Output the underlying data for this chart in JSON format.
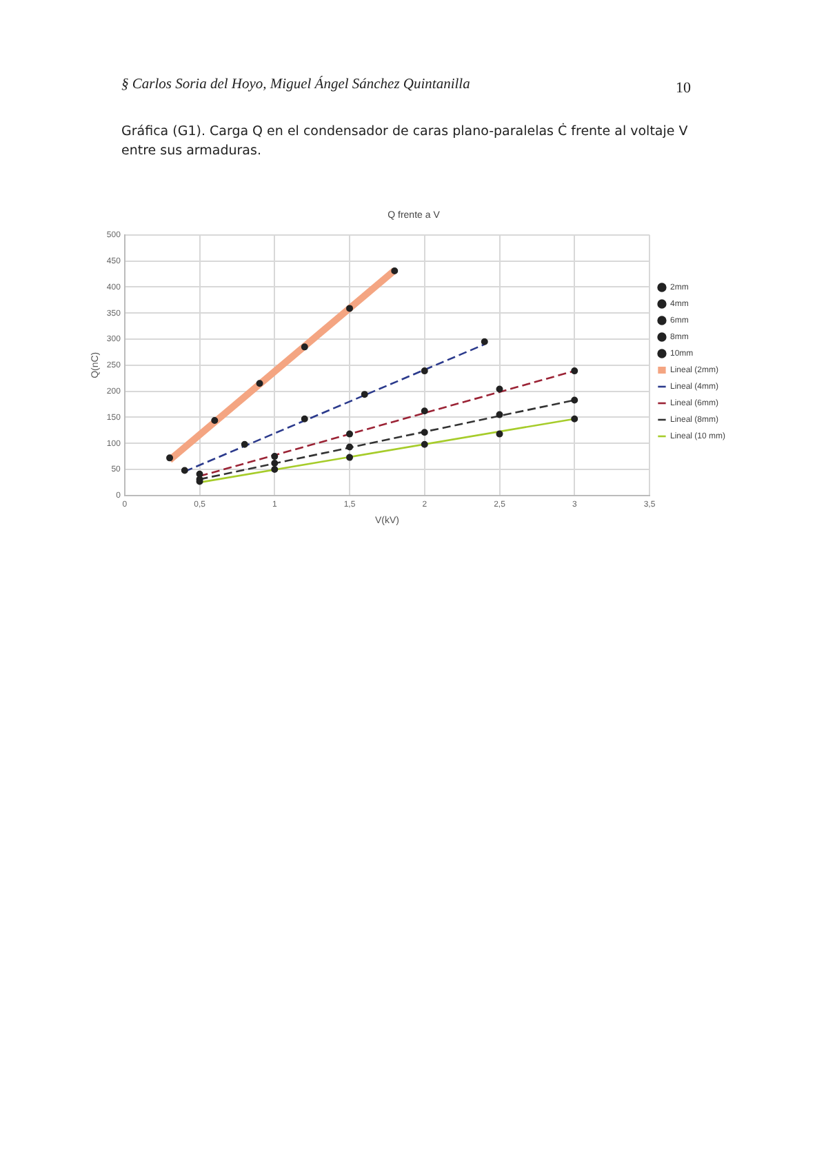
{
  "chart_data": {
    "type": "scatter",
    "title": "Q frente a V",
    "xlabel": "V(kV)",
    "ylabel": "Q(nC)",
    "annotations": [
      "§ Carlos Soria del Hoyo, Miguel Ángel Sánchez Quintanilla",
      "10",
      "Gráfica (G1). Carga Q en el condensador de caras plano-paralelas Ċ frente al voltaje V entre sus armaduras."
    ],
    "xlim": [
      0,
      3.5
    ],
    "xticks": [
      0,
      {
        "value": 0.5,
        "label": "0,5"
      },
      1,
      {
        "value": 1.5,
        "label": "1,5"
      },
      2,
      {
        "value": 2.5,
        "label": "2,5"
      },
      3,
      {
        "value": 3.5,
        "label": "3,5"
      }
    ],
    "ylim": [
      0,
      500
    ],
    "yticks": [
      0,
      50,
      100,
      150,
      200,
      250,
      300,
      350,
      400,
      450,
      500
    ],
    "grid": true,
    "legend": "right",
    "marker": "circle",
    "series": [
      {
        "name": "2mm",
        "color": "#222222",
        "x": [
          0.3,
          0.6,
          0.9,
          1.2,
          1.5,
          1.8
        ],
        "values": [
          72,
          144,
          215,
          285,
          359,
          431
        ]
      },
      {
        "name": "4mm",
        "color": "#222222",
        "x": [
          0.4,
          0.8,
          1.2,
          1.6,
          2.0,
          2.4
        ],
        "values": [
          48,
          98,
          147,
          194,
          239,
          295
        ]
      },
      {
        "name": "6mm",
        "color": "#222222",
        "x": [
          0.5,
          1.0,
          1.5,
          2.0,
          2.5,
          3.0
        ],
        "values": [
          41,
          75,
          118,
          162,
          204,
          239
        ]
      },
      {
        "name": "8mm",
        "color": "#222222",
        "x": [
          0.5,
          1.0,
          1.5,
          2.0,
          2.5,
          3.0
        ],
        "values": [
          31,
          62,
          93,
          121,
          155,
          183
        ]
      },
      {
        "name": "10mm",
        "color": "#222222",
        "x": [
          0.5,
          1.0,
          1.5,
          2.0,
          2.5,
          3.0
        ],
        "values": [
          27,
          50,
          73,
          98,
          118,
          147
        ]
      },
      {
        "name": "Lineal (2mm)",
        "type": "line",
        "marker": "none",
        "line_style": "solid",
        "color": "#f4a582",
        "x": [
          0.3,
          1.8
        ],
        "values": [
          68,
          432
        ]
      },
      {
        "name": "Lineal (4mm)",
        "type": "line",
        "marker": "none",
        "line_style": "dashed",
        "color": "#2b3a8c",
        "x": [
          0.4,
          2.4
        ],
        "values": [
          46,
          290
        ]
      },
      {
        "name": "Lineal (6mm)",
        "type": "line",
        "marker": "none",
        "line_style": "dashed",
        "color": "#9b2335",
        "x": [
          0.5,
          3.0
        ],
        "values": [
          37,
          239
        ]
      },
      {
        "name": "Lineal (8mm)",
        "type": "line",
        "marker": "none",
        "line_style": "dashed",
        "color": "#333333",
        "x": [
          0.5,
          3.0
        ],
        "values": [
          31,
          183
        ]
      },
      {
        "name": "Lineal (10 mm)",
        "type": "line",
        "marker": "none",
        "line_style": "solid",
        "color": "#a6cc2a",
        "x": [
          0.5,
          3.0
        ],
        "values": [
          25,
          147
        ]
      }
    ]
  }
}
